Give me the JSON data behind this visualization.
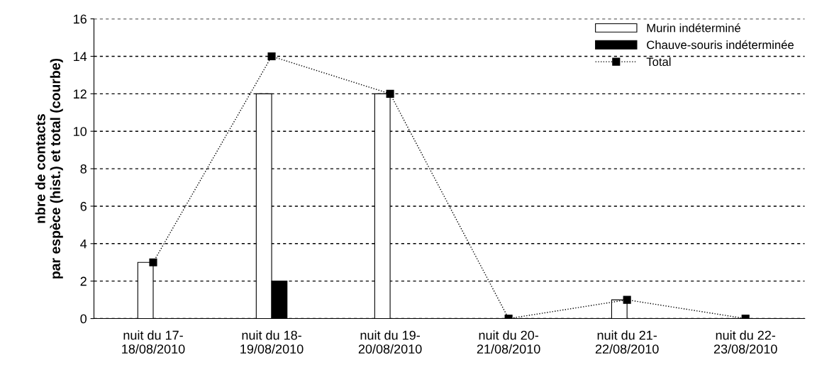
{
  "chart_data": {
    "type": "bar",
    "ylabel": "nbre de contacts\npar espèce (hist.) et total (courbe)",
    "categories": [
      "nuit du 17-\n18/08/2010",
      "nuit du 18-\n19/08/2010",
      "nuit du 19-\n20/08/2010",
      "nuit du 20-\n21/08/2010",
      "nuit du 21-\n22/08/2010",
      "nuit du 22-\n23/08/2010"
    ],
    "series": [
      {
        "name": "Murin indéterminé",
        "color": "#ffffff",
        "values": [
          3,
          12,
          12,
          null,
          1,
          null
        ]
      },
      {
        "name": "Chauve-souris indéterminée",
        "color": "#000000",
        "values": [
          null,
          2,
          null,
          null,
          null,
          null
        ]
      },
      {
        "name": "Total",
        "type": "line",
        "color": "#000000",
        "values": [
          3,
          14,
          12,
          0,
          1,
          0
        ]
      }
    ],
    "ylim": [
      0,
      16
    ],
    "yticks": [
      0,
      2,
      4,
      6,
      8,
      10,
      12,
      14,
      16
    ],
    "grid": "y",
    "legend": "top right",
    "marker": "square",
    "line_style": "dotted"
  }
}
